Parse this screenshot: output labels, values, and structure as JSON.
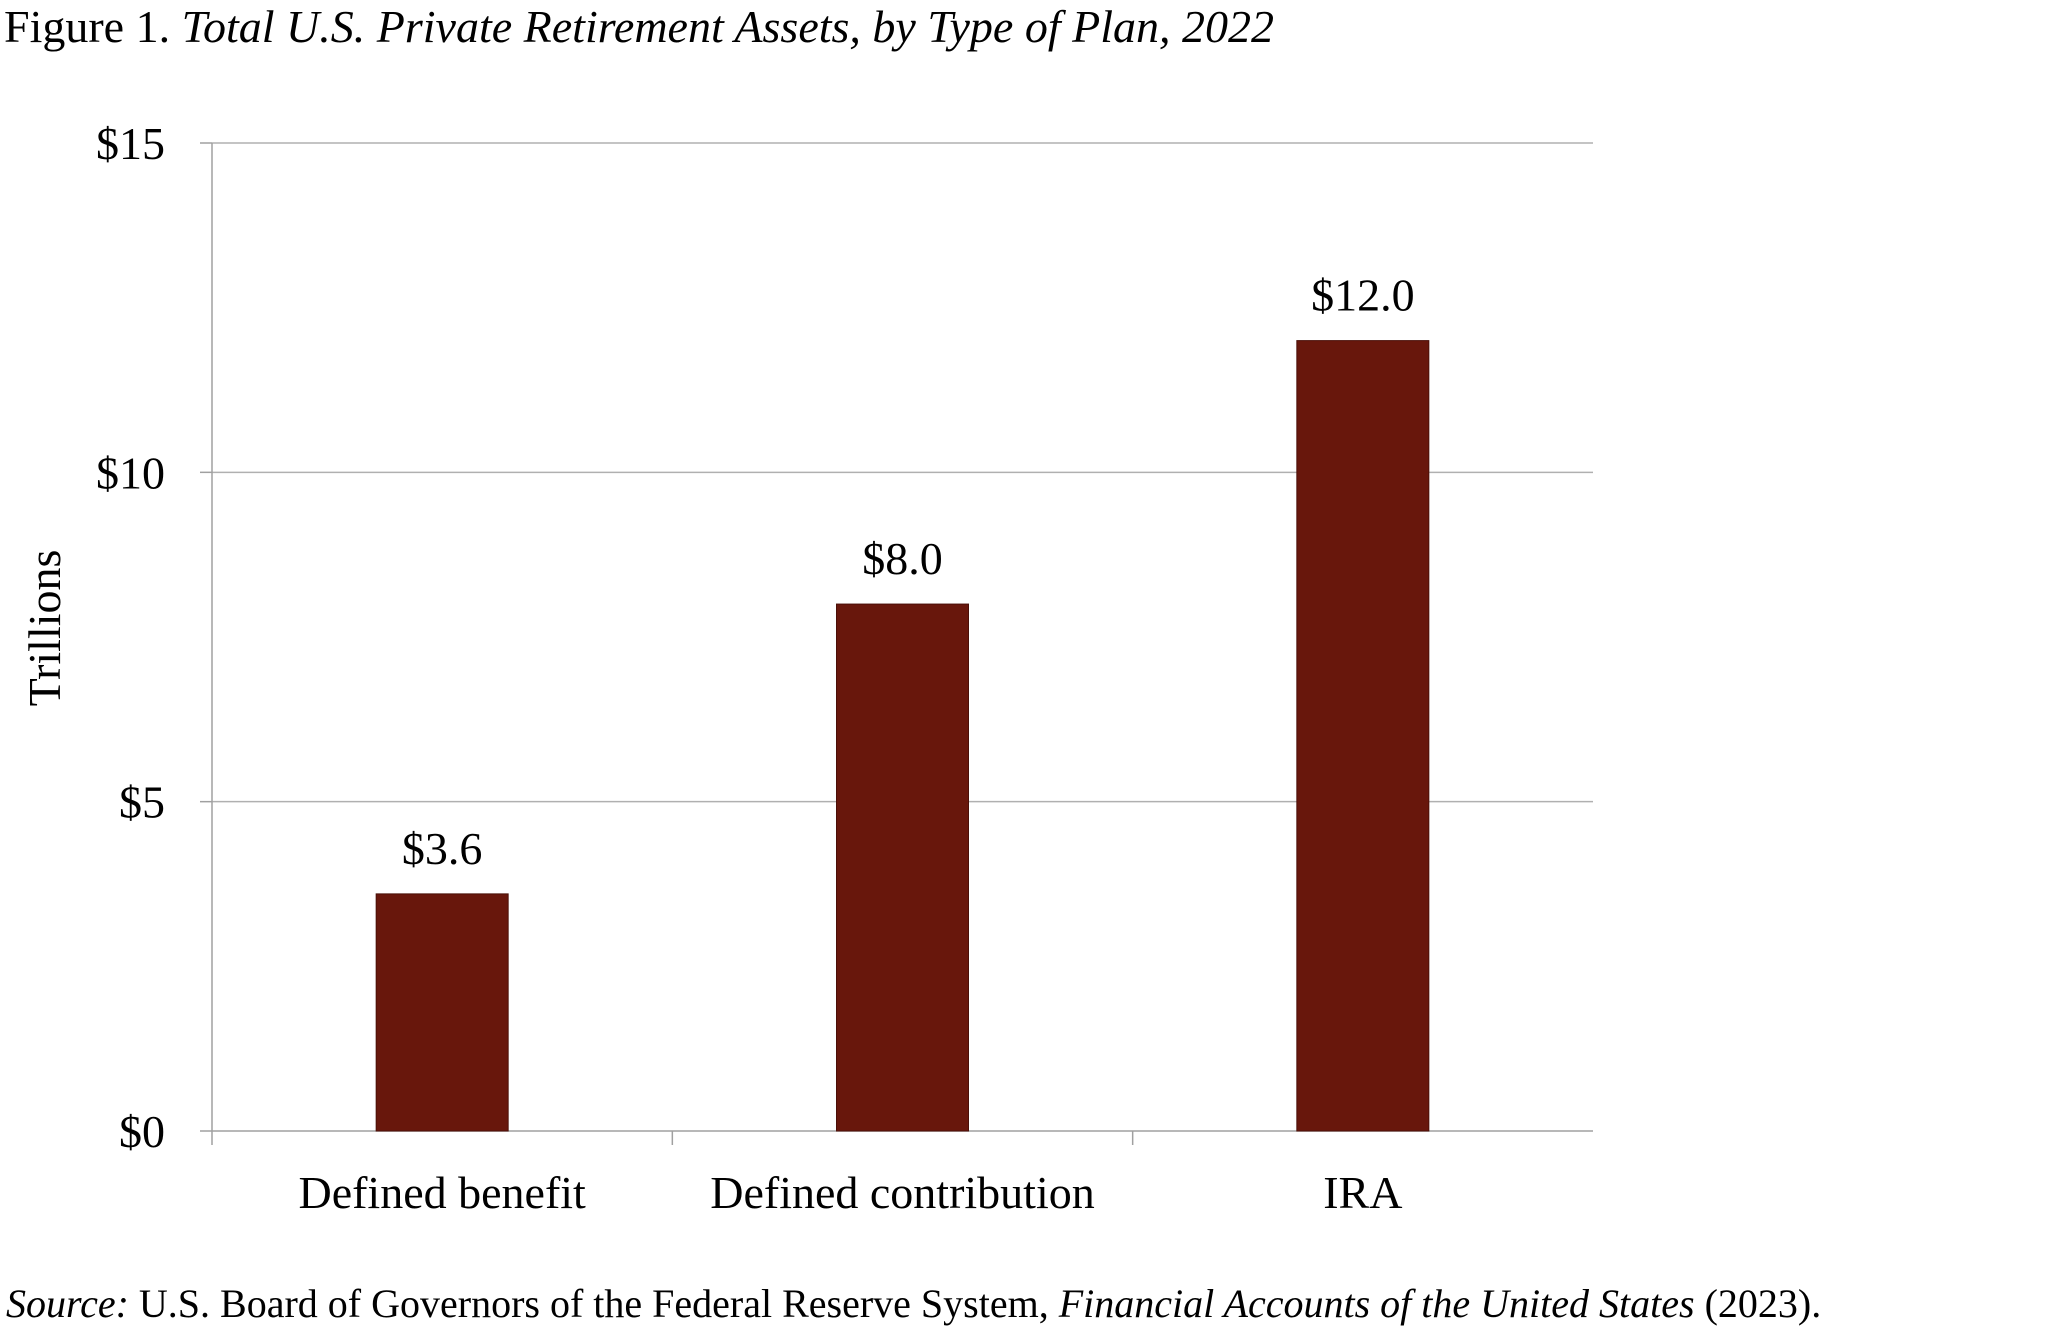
{
  "title": {
    "prefix": "Figure 1. ",
    "italic": "Total U.S. Private Retirement Assets, by Type of Plan, 2022"
  },
  "source": {
    "label": "Source:",
    "text1": " U.S. Board of Governors of the Federal Reserve System, ",
    "italic": "Financial Accounts of the United States",
    "text2": " (2023)."
  },
  "colors": {
    "bar": "#68170c",
    "grid": "#b0b0b0",
    "axis": "#a0a0a0"
  },
  "chart_data": {
    "type": "bar",
    "title": "Total U.S. Private Retirement Assets, by Type of Plan, 2022",
    "xlabel": "",
    "ylabel": "Trillions",
    "categories": [
      "Defined benefit",
      "Defined contribution",
      "IRA"
    ],
    "values": [
      3.6,
      8.0,
      12.0
    ],
    "data_labels": [
      "$3.6",
      "$8.0",
      "$12.0"
    ],
    "ylim": [
      0,
      15
    ],
    "yticks": [
      0,
      5,
      10,
      15
    ],
    "ytick_labels": [
      "$0",
      "$5",
      "$10",
      "$15"
    ],
    "grid": true,
    "legend": "none"
  }
}
